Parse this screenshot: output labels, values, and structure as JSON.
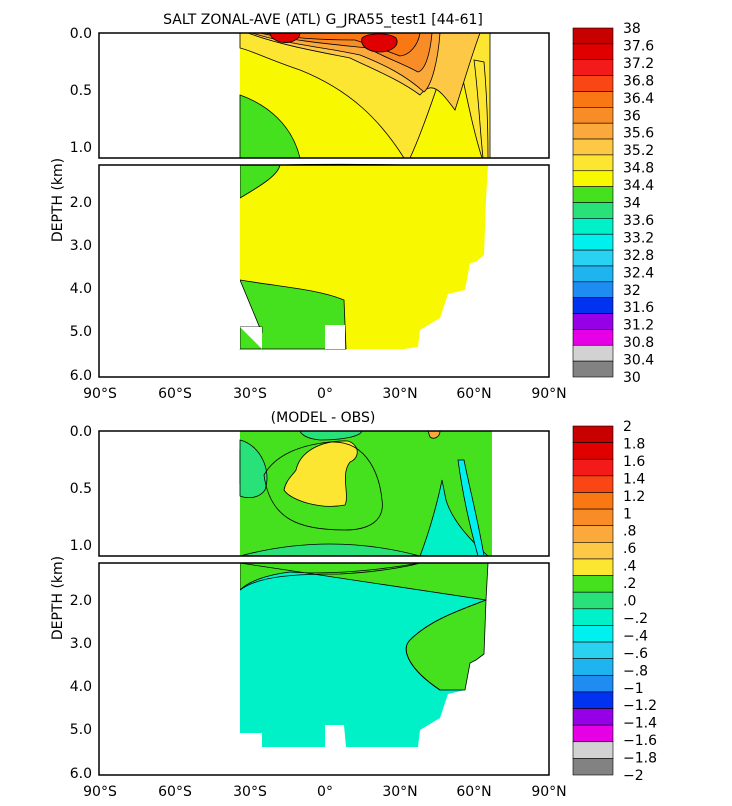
{
  "chart_data": [
    {
      "type": "heatmap",
      "title": "SALT ZONAL-AVE (ATL) G_JRA55_test1 [44-61]",
      "ylabel": "DEPTH (km)",
      "x_ticks": [
        "90°S",
        "60°S",
        "30°S",
        "0°",
        "30°N",
        "60°N",
        "90°N"
      ],
      "y_ticks_upper": [
        "0.0",
        "0.5",
        "1.0"
      ],
      "y_ticks_lower": [
        "2.0",
        "3.0",
        "4.0",
        "5.0",
        "6.0"
      ],
      "xlim": [
        -90,
        90
      ],
      "ylim_km": [
        0,
        6
      ],
      "colorbar_levels": [
        "38",
        "37.6",
        "37.2",
        "36.8",
        "36.4",
        "36",
        "35.6",
        "35.2",
        "34.8",
        "34.4",
        "34",
        "33.6",
        "33.2",
        "32.8",
        "32.4",
        "32",
        "31.6",
        "31.2",
        "30.8",
        "30.4",
        "30"
      ],
      "colorbar_colors": [
        "#c80000",
        "#e00000",
        "#f51a1a",
        "#fa4614",
        "#fa7814",
        "#f88d28",
        "#fca93c",
        "#fcc846",
        "#fce632",
        "#f8f800",
        "#46e11e",
        "#28e178",
        "#00f0c8",
        "#00f0f0",
        "#28d2f0",
        "#1eb4f0",
        "#1e8cf0",
        "#0032f0",
        "#9600e6",
        "#e600e6",
        "#d2d2d2",
        "#828282"
      ]
    },
    {
      "type": "heatmap",
      "title": "(MODEL - OBS)",
      "ylabel": "DEPTH (km)",
      "x_ticks": [
        "90°S",
        "60°S",
        "30°S",
        "0°",
        "30°N",
        "60°N",
        "90°N"
      ],
      "y_ticks_upper": [
        "0.0",
        "0.5",
        "1.0"
      ],
      "y_ticks_lower": [
        "2.0",
        "3.0",
        "4.0",
        "5.0",
        "6.0"
      ],
      "xlim": [
        -90,
        90
      ],
      "ylim_km": [
        0,
        6
      ],
      "colorbar_levels": [
        "2",
        "1.8",
        "1.6",
        "1.4",
        "1.2",
        "1",
        ".8",
        ".6",
        ".4",
        ".2",
        ".0",
        "−.2",
        "−.4",
        "−.6",
        "−.8",
        "−1",
        "−1.2",
        "−1.4",
        "−1.6",
        "−1.8",
        "−2"
      ],
      "colorbar_colors": [
        "#c80000",
        "#e00000",
        "#f51a1a",
        "#fa4614",
        "#fa7814",
        "#f88d28",
        "#fca93c",
        "#fcc846",
        "#fce632",
        "#46e11e",
        "#28e178",
        "#00f0c8",
        "#00f0f0",
        "#28d2f0",
        "#1eb4f0",
        "#1e8cf0",
        "#0032f0",
        "#9600e6",
        "#e600e6",
        "#d2d2d2",
        "#828282"
      ]
    }
  ]
}
